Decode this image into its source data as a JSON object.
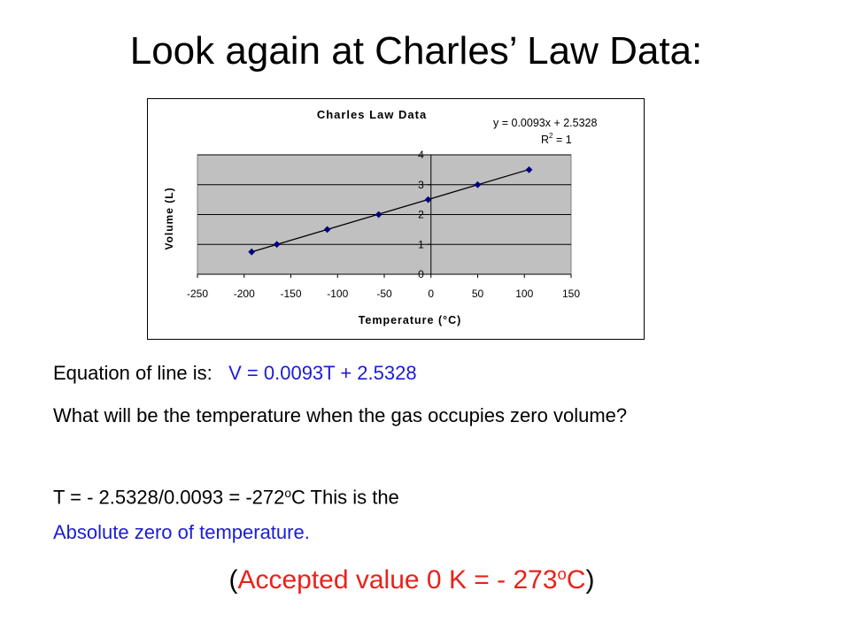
{
  "slide": {
    "title": "Look again at Charles’ Law Data:"
  },
  "text": {
    "equation_prefix": "Equation of line is:",
    "equation": "V = 0.0093T + 2.5328",
    "question": "What will be the temperature when the gas occupies zero volume?",
    "calc_before": "T = - 2.5328/0.0093 = -272",
    "calc_superscript": "o",
    "calc_after": "C This is the",
    "absolute_zero": "Absolute zero of temperature.",
    "accepted_open": "(",
    "accepted_main": "Accepted value 0 K = - 273",
    "accepted_superscript": "o",
    "accepted_unit": "C",
    "accepted_close": ")"
  },
  "colors": {
    "blue_text": "#1c1cd6",
    "red_text": "#e8221b",
    "plot_area": "#c0c0c0",
    "marker": "#000080"
  },
  "chart_data": {
    "type": "scatter",
    "title": "Charles Law Data",
    "xlabel": "Temperature (°C)",
    "ylabel": "Volume (L)",
    "xlim": [
      -250,
      150
    ],
    "ylim": [
      0,
      4
    ],
    "x_ticks": [
      -250,
      -200,
      -150,
      -100,
      -50,
      0,
      50,
      100,
      150
    ],
    "y_ticks": [
      0,
      1,
      2,
      3,
      4
    ],
    "grid": true,
    "series": [
      {
        "x": [
          -192,
          -165,
          -111,
          -56,
          -3,
          50,
          105
        ],
        "y": [
          0.75,
          1.0,
          1.5,
          2.0,
          2.5,
          3.0,
          3.5
        ]
      }
    ],
    "trendline": {
      "slope": 0.0093,
      "intercept": 2.5328,
      "equation_label": "y = 0.0093x + 2.5328",
      "r2_label": "R",
      "r2_superscript": "2",
      "r2_value": " = 1"
    }
  }
}
